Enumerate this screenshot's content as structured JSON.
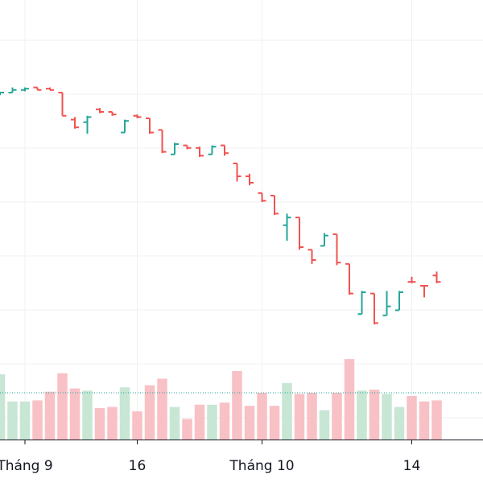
{
  "chart_data": {
    "type": "ohlc",
    "x_tick_labels": [
      {
        "label": "Tháng 9",
        "index": 2
      },
      {
        "label": "16",
        "index": 11
      },
      {
        "label": "Tháng 10",
        "index": 21
      },
      {
        "label": "14",
        "index": 33
      }
    ],
    "price_range": [
      0,
      100
    ],
    "volume_range": [
      0,
      100
    ],
    "reference_line": 43,
    "series": [
      {
        "o": 86.5,
        "h": 87.5,
        "l": 86.5,
        "c": 87.5,
        "v": 60,
        "up": true
      },
      {
        "o": 87.5,
        "h": 89.5,
        "l": 87.5,
        "c": 88.5,
        "v": 35,
        "up": true
      },
      {
        "o": 88.5,
        "h": 89.5,
        "l": 88.0,
        "c": 89.0,
        "v": 35,
        "up": true
      },
      {
        "o": 89.5,
        "h": 89.5,
        "l": 88.5,
        "c": 88.5,
        "v": 36,
        "up": false
      },
      {
        "o": 89.0,
        "h": 89.5,
        "l": 88.5,
        "c": 88.5,
        "v": 44,
        "up": false
      },
      {
        "o": 87.5,
        "h": 87.5,
        "l": 78.5,
        "c": 78.5,
        "v": 61,
        "up": false
      },
      {
        "o": 77.0,
        "h": 78.0,
        "l": 73.5,
        "c": 74.0,
        "v": 47,
        "up": false
      },
      {
        "o": 76.0,
        "h": 78.5,
        "l": 71.5,
        "c": 78.0,
        "v": 45,
        "up": true
      },
      {
        "o": 81.0,
        "h": 81.5,
        "l": 79.5,
        "c": 80.0,
        "v": 29,
        "up": false
      },
      {
        "o": 80.0,
        "h": 80.0,
        "l": 78.5,
        "c": 79.0,
        "v": 30,
        "up": false
      },
      {
        "o": 72.0,
        "h": 77.0,
        "l": 72.0,
        "c": 76.5,
        "v": 48,
        "up": true
      },
      {
        "o": 78.5,
        "h": 79.0,
        "l": 77.5,
        "c": 78.0,
        "v": 26,
        "up": false
      },
      {
        "o": 77.5,
        "h": 77.5,
        "l": 71.5,
        "c": 72.0,
        "v": 50,
        "up": false
      },
      {
        "o": 73.0,
        "h": 73.0,
        "l": 64.0,
        "c": 64.5,
        "v": 56,
        "up": false
      },
      {
        "o": 63.5,
        "h": 68.0,
        "l": 63.5,
        "c": 67.5,
        "v": 30,
        "up": true
      },
      {
        "o": 67.0,
        "h": 67.0,
        "l": 65.5,
        "c": 66.0,
        "v": 19,
        "up": false
      },
      {
        "o": 66.0,
        "h": 66.5,
        "l": 62.5,
        "c": 63.0,
        "v": 32,
        "up": false
      },
      {
        "o": 63.5,
        "h": 67.0,
        "l": 63.5,
        "c": 66.5,
        "v": 32,
        "up": true
      },
      {
        "o": 67.0,
        "h": 67.0,
        "l": 63.0,
        "c": 64.0,
        "v": 34,
        "up": false
      },
      {
        "o": 60.0,
        "h": 60.0,
        "l": 53.0,
        "c": 55.0,
        "v": 63,
        "up": false
      },
      {
        "o": 55.0,
        "h": 56.0,
        "l": 51.5,
        "c": 52.5,
        "v": 31,
        "up": false
      },
      {
        "o": 48.5,
        "h": 48.5,
        "l": 45.0,
        "c": 45.5,
        "v": 43,
        "up": false
      },
      {
        "o": 47.5,
        "h": 47.5,
        "l": 40.0,
        "c": 40.5,
        "v": 31,
        "up": false
      },
      {
        "o": 36.0,
        "h": 40.5,
        "l": 30.0,
        "c": 39.0,
        "v": 52,
        "up": true
      },
      {
        "o": 39.0,
        "h": 39.0,
        "l": 26.5,
        "c": 27.5,
        "v": 42,
        "up": false
      },
      {
        "o": 26.5,
        "h": 26.5,
        "l": 21.0,
        "c": 22.5,
        "v": 43,
        "up": false
      },
      {
        "o": 28.0,
        "h": 33.0,
        "l": 28.0,
        "c": 32.0,
        "v": 27,
        "up": true
      },
      {
        "o": 32.5,
        "h": 32.5,
        "l": 20.5,
        "c": 21.5,
        "v": 43,
        "up": false
      },
      {
        "o": 21.0,
        "h": 21.0,
        "l": 9.0,
        "c": 9.5,
        "v": 74,
        "up": false
      },
      {
        "o": 1.5,
        "h": 10.5,
        "l": 1.5,
        "c": 10.0,
        "v": 45,
        "up": true
      },
      {
        "o": 9.5,
        "h": 9.5,
        "l": -2.5,
        "c": -2.0,
        "v": 46,
        "up": false
      },
      {
        "o": 1.0,
        "h": 10.5,
        "l": 1.0,
        "c": 4.5,
        "v": 42,
        "up": true
      },
      {
        "o": 3.0,
        "h": 10.5,
        "l": 3.0,
        "c": 10.0,
        "v": 30,
        "up": true
      },
      {
        "o": 14.0,
        "h": 16.0,
        "l": 13.5,
        "c": 14.0,
        "v": 40,
        "up": false
      },
      {
        "o": 12.5,
        "h": 12.5,
        "l": 8.0,
        "c": 12.5,
        "v": 35,
        "up": false
      },
      {
        "o": 16.5,
        "h": 18.0,
        "l": 13.5,
        "c": 14.0,
        "v": 36,
        "up": false
      }
    ]
  }
}
